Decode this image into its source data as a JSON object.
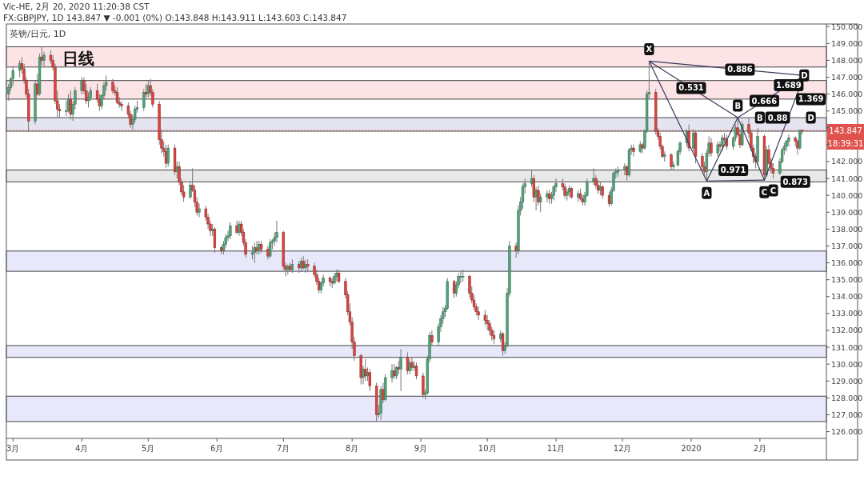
{
  "chart_data": {
    "type": "candlestick",
    "title": "Vic-HE, 2月 20, 2020 11:20:38 CST",
    "subtitle": "FX:GBPJPY, 1D 143.847 ▼ -0.001 (0%) O:143.848 H:143.911 L:143.603 C:143.847",
    "annotations": [
      "英镑/日元, 1D",
      "18:39:31",
      {
        "text": "X",
        "x": "2019-12-13",
        "y": 147.95
      },
      {
        "text": "A",
        "x": "2020-01-08",
        "y": 140.85
      },
      {
        "text": "B",
        "x": "2020-01-22",
        "y": 144.6
      },
      {
        "text": "C",
        "x": "2020-02-03",
        "y": 140.9
      },
      {
        "text": "D",
        "x": "2020-02-21",
        "y": 147.1
      },
      {
        "text": "B",
        "x": "2020-02-01",
        "y": 144.6
      },
      {
        "text": "C",
        "x": "2020-02-07",
        "y": 141.0
      },
      {
        "text": "D",
        "x": "2020-02-24",
        "y": 144.6
      },
      {
        "text": "0.886",
        "x": "2020-01-23",
        "y": 147.45
      },
      {
        "text": "0.531",
        "x": "2020-01-01",
        "y": 146.36
      },
      {
        "text": "1.689",
        "x": "2020-02-14",
        "y": 146.52
      },
      {
        "text": "0.88",
        "x": "2020-02-09",
        "y": 144.6
      },
      {
        "text": "0.666",
        "x": "2020-02-03",
        "y": 145.6
      },
      {
        "text": "1.369",
        "x": "2020-02-24",
        "y": 145.7
      },
      {
        "text": "0.971",
        "x": "2020-01-20",
        "y": 141.5
      },
      {
        "text": "0.873",
        "x": "2020-02-17",
        "y": 140.8
      }
    ],
    "xlim": [
      "2019-02-26",
      "2020-03-02"
    ],
    "xticks": [
      {
        "value": "2019-03-01",
        "label": "3月"
      },
      {
        "value": "2019-04-01",
        "label": "4月"
      },
      {
        "value": "2019-05-01",
        "label": "5月"
      },
      {
        "value": "2019-06-01",
        "label": "6月"
      },
      {
        "value": "2019-07-01",
        "label": "7月"
      },
      {
        "value": "2019-08-01",
        "label": "8月"
      },
      {
        "value": "2019-09-01",
        "label": "9月"
      },
      {
        "value": "2019-10-01",
        "label": "10月"
      },
      {
        "value": "2019-11-01",
        "label": "11月"
      },
      {
        "value": "2019-12-01",
        "label": "12月"
      },
      {
        "value": "2020-01-01",
        "label": "2020"
      },
      {
        "value": "2020-02-01",
        "label": "2月"
      }
    ],
    "ylim": [
      125.6,
      150.15
    ],
    "yticks": [
      {
        "value": 126,
        "label": "126.000"
      },
      {
        "value": 127,
        "label": "127.000"
      },
      {
        "value": 128,
        "label": "128.000"
      },
      {
        "value": 129,
        "label": "129.000"
      },
      {
        "value": 130,
        "label": "130.000"
      },
      {
        "value": 131,
        "label": "131.000"
      },
      {
        "value": 132,
        "label": "132.000"
      },
      {
        "value": 133,
        "label": "133.000"
      },
      {
        "value": 134,
        "label": "134.000"
      },
      {
        "value": 135,
        "label": "135.000"
      },
      {
        "value": 136,
        "label": "136.000"
      },
      {
        "value": 137,
        "label": "137.000"
      },
      {
        "value": 138,
        "label": "138.000"
      },
      {
        "value": 139,
        "label": "139.000"
      },
      {
        "value": 140,
        "label": "140.000"
      },
      {
        "value": 141,
        "label": "141.000"
      },
      {
        "value": 142,
        "label": "142.000"
      },
      {
        "value": 143,
        "label": null
      },
      {
        "value": 144,
        "label": null
      },
      {
        "value": 145,
        "label": "145.000"
      },
      {
        "value": 146,
        "label": "146.000"
      },
      {
        "value": 147,
        "label": "147.000"
      },
      {
        "value": 148,
        "label": "148.000"
      },
      {
        "value": 149,
        "label": "149.000"
      },
      {
        "value": 150,
        "label": "150.000"
      }
    ],
    "bands": [
      {
        "axis": "y",
        "from": 147.6,
        "to": 148.8,
        "label": "日线",
        "color": "#fadadd"
      },
      {
        "axis": "y",
        "from": 145.7,
        "to": 146.8,
        "color": "#fadadd"
      },
      {
        "axis": "y",
        "from": 143.8,
        "to": 144.6,
        "color": "#dcdcec"
      },
      {
        "axis": "y",
        "from": 140.8,
        "to": 141.5,
        "color": "#e0e0e0"
      },
      {
        "axis": "y",
        "from": 135.5,
        "to": 136.7,
        "color": "#e0e0fa"
      },
      {
        "axis": "y",
        "from": 130.4,
        "to": 131.1,
        "color": "#e0e0fa"
      },
      {
        "axis": "y",
        "from": 126.6,
        "to": 128.1,
        "color": "#e0e0fa"
      }
    ],
    "ref_lines": [
      {
        "axis": "y",
        "value": 143.847,
        "label": "143.847",
        "color": "#e0524c",
        "line_style": "dotted"
      }
    ],
    "series": [
      {
        "type": "line",
        "color": "#3a3a5c",
        "x": [
          "2019-12-13",
          "2020-01-08",
          "2020-01-22",
          "2020-02-03",
          "2020-02-21"
        ],
        "values": [
          147.95,
          140.85,
          144.6,
          140.9,
          147.1
        ]
      },
      {
        "type": "line",
        "color": "#3a3a5c",
        "x": [
          "2019-12-13",
          "2020-01-22"
        ],
        "values": [
          147.95,
          144.6
        ]
      },
      {
        "type": "line",
        "color": "#3a3a5c",
        "x": [
          "2020-01-22",
          "2020-02-21"
        ],
        "values": [
          144.6,
          147.1
        ]
      },
      {
        "type": "line",
        "color": "#3a3a5c",
        "x": [
          "2019-12-13",
          "2020-02-21"
        ],
        "values": [
          147.95,
          147.1
        ]
      },
      {
        "type": "line",
        "color": "#3a3a5c",
        "x": [
          "2020-01-08",
          "2020-02-03"
        ],
        "values": [
          140.85,
          140.9
        ]
      }
    ],
    "x": [
      "2019-02-27",
      "2019-02-28",
      "2019-03-01",
      "2019-03-04",
      "2019-03-05",
      "2019-03-06",
      "2019-03-07",
      "2019-03-08",
      "2019-03-11",
      "2019-03-12",
      "2019-03-13",
      "2019-03-14",
      "2019-03-15",
      "2019-03-18",
      "2019-03-19",
      "2019-03-20",
      "2019-03-21",
      "2019-03-22",
      "2019-03-25",
      "2019-03-26",
      "2019-03-27",
      "2019-03-28",
      "2019-03-29",
      "2019-04-01",
      "2019-04-02",
      "2019-04-03",
      "2019-04-04",
      "2019-04-05",
      "2019-04-08",
      "2019-04-09",
      "2019-04-10",
      "2019-04-11",
      "2019-04-12",
      "2019-04-15",
      "2019-04-16",
      "2019-04-17",
      "2019-04-18",
      "2019-04-19",
      "2019-04-22",
      "2019-04-23",
      "2019-04-24",
      "2019-04-25",
      "2019-04-26",
      "2019-04-29",
      "2019-04-30",
      "2019-05-01",
      "2019-05-02",
      "2019-05-03",
      "2019-05-06",
      "2019-05-07",
      "2019-05-08",
      "2019-05-09",
      "2019-05-10",
      "2019-05-13",
      "2019-05-14",
      "2019-05-15",
      "2019-05-16",
      "2019-05-17",
      "2019-05-20",
      "2019-05-21",
      "2019-05-22",
      "2019-05-23",
      "2019-05-24",
      "2019-05-27",
      "2019-05-28",
      "2019-05-29",
      "2019-05-30",
      "2019-05-31",
      "2019-06-03",
      "2019-06-04",
      "2019-06-05",
      "2019-06-06",
      "2019-06-07",
      "2019-06-10",
      "2019-06-11",
      "2019-06-12",
      "2019-06-13",
      "2019-06-14",
      "2019-06-17",
      "2019-06-18",
      "2019-06-19",
      "2019-06-20",
      "2019-06-21",
      "2019-06-24",
      "2019-06-25",
      "2019-06-26",
      "2019-06-27",
      "2019-06-28",
      "2019-07-01",
      "2019-07-02",
      "2019-07-03",
      "2019-07-04",
      "2019-07-05",
      "2019-07-08",
      "2019-07-09",
      "2019-07-10",
      "2019-07-11",
      "2019-07-12",
      "2019-07-15",
      "2019-07-16",
      "2019-07-17",
      "2019-07-18",
      "2019-07-19",
      "2019-07-22",
      "2019-07-23",
      "2019-07-24",
      "2019-07-25",
      "2019-07-26",
      "2019-07-29",
      "2019-07-30",
      "2019-07-31",
      "2019-08-01",
      "2019-08-02",
      "2019-08-05",
      "2019-08-06",
      "2019-08-07",
      "2019-08-08",
      "2019-08-09",
      "2019-08-12",
      "2019-08-13",
      "2019-08-14",
      "2019-08-15",
      "2019-08-16",
      "2019-08-19",
      "2019-08-20",
      "2019-08-21",
      "2019-08-22",
      "2019-08-23",
      "2019-08-26",
      "2019-08-27",
      "2019-08-28",
      "2019-08-29",
      "2019-08-30",
      "2019-09-02",
      "2019-09-03",
      "2019-09-04",
      "2019-09-05",
      "2019-09-06",
      "2019-09-09",
      "2019-09-10",
      "2019-09-11",
      "2019-09-12",
      "2019-09-13",
      "2019-09-16",
      "2019-09-17",
      "2019-09-18",
      "2019-09-19",
      "2019-09-20",
      "2019-09-23",
      "2019-09-24",
      "2019-09-25",
      "2019-09-26",
      "2019-09-27",
      "2019-09-30",
      "2019-10-01",
      "2019-10-02",
      "2019-10-03",
      "2019-10-04",
      "2019-10-07",
      "2019-10-08",
      "2019-10-09",
      "2019-10-10",
      "2019-10-11",
      "2019-10-14",
      "2019-10-15",
      "2019-10-16",
      "2019-10-17",
      "2019-10-18",
      "2019-10-21",
      "2019-10-22",
      "2019-10-23",
      "2019-10-24",
      "2019-10-25",
      "2019-10-28",
      "2019-10-29",
      "2019-10-30",
      "2019-10-31",
      "2019-11-01",
      "2019-11-04",
      "2019-11-05",
      "2019-11-06",
      "2019-11-07",
      "2019-11-08",
      "2019-11-11",
      "2019-11-12",
      "2019-11-13",
      "2019-11-14",
      "2019-11-15",
      "2019-11-18",
      "2019-11-19",
      "2019-11-20",
      "2019-11-21",
      "2019-11-22",
      "2019-11-25",
      "2019-11-26",
      "2019-11-27",
      "2019-11-28",
      "2019-11-29",
      "2019-12-02",
      "2019-12-03",
      "2019-12-04",
      "2019-12-05",
      "2019-12-06",
      "2019-12-09",
      "2019-12-10",
      "2019-12-11",
      "2019-12-12",
      "2019-12-13",
      "2019-12-16",
      "2019-12-17",
      "2019-12-18",
      "2019-12-19",
      "2019-12-20",
      "2019-12-23",
      "2019-12-24",
      "2019-12-26",
      "2019-12-27",
      "2019-12-30",
      "2019-12-31",
      "2020-01-02",
      "2020-01-03",
      "2020-01-06",
      "2020-01-07",
      "2020-01-08",
      "2020-01-09",
      "2020-01-10",
      "2020-01-13",
      "2020-01-14",
      "2020-01-15",
      "2020-01-16",
      "2020-01-17",
      "2020-01-20",
      "2020-01-21",
      "2020-01-22",
      "2020-01-23",
      "2020-01-24",
      "2020-01-27",
      "2020-01-28",
      "2020-01-29",
      "2020-01-30",
      "2020-01-31",
      "2020-02-03",
      "2020-02-04",
      "2020-02-05",
      "2020-02-06",
      "2020-02-07",
      "2020-02-10",
      "2020-02-11",
      "2020-02-12",
      "2020-02-13",
      "2020-02-14",
      "2020-02-17",
      "2020-02-18",
      "2020-02-19",
      "2020-02-20"
    ],
    "ohlc": [
      [
        146.0,
        146.6,
        145.6,
        146.4
      ],
      [
        146.4,
        147.0,
        146.2,
        146.9
      ],
      [
        146.9,
        147.6,
        146.5,
        147.4
      ],
      [
        147.4,
        148.0,
        147.0,
        147.8
      ],
      [
        147.8,
        148.2,
        147.2,
        147.5
      ],
      [
        147.5,
        147.8,
        146.6,
        146.8
      ],
      [
        146.8,
        147.0,
        145.8,
        146.0
      ],
      [
        146.0,
        146.3,
        143.8,
        144.4
      ],
      [
        144.4,
        146.8,
        144.2,
        146.6
      ],
      [
        146.6,
        147.2,
        145.9,
        146.0
      ],
      [
        146.0,
        148.4,
        145.9,
        148.2
      ],
      [
        148.2,
        148.8,
        147.7,
        148.0
      ],
      [
        148.0,
        148.5,
        147.6,
        148.3
      ],
      [
        148.3,
        148.6,
        147.8,
        148.0
      ],
      [
        148.0,
        148.3,
        147.4,
        147.6
      ],
      [
        147.6,
        147.8,
        145.4,
        145.6
      ],
      [
        145.6,
        146.2,
        144.6,
        145.1
      ],
      [
        145.1,
        145.4,
        144.6,
        145.0
      ],
      [
        145.0,
        145.6,
        144.7,
        145.0
      ],
      [
        145.0,
        146.0,
        144.9,
        145.7
      ],
      [
        145.7,
        146.2,
        144.5,
        144.8
      ],
      [
        144.8,
        145.6,
        144.4,
        145.4
      ],
      [
        145.4,
        146.4,
        145.1,
        146.2
      ],
      [
        146.2,
        147.0,
        146.0,
        146.8
      ],
      [
        146.8,
        147.0,
        146.0,
        146.2
      ],
      [
        146.2,
        146.6,
        145.4,
        145.6
      ],
      [
        145.6,
        146.1,
        145.2,
        145.8
      ],
      [
        145.8,
        146.4,
        145.6,
        146.2
      ],
      [
        146.2,
        146.6,
        145.5,
        145.7
      ],
      [
        145.7,
        146.0,
        145.0,
        145.3
      ],
      [
        145.3,
        146.0,
        145.1,
        145.9
      ],
      [
        145.9,
        146.7,
        145.7,
        146.5
      ],
      [
        146.5,
        147.1,
        146.2,
        146.7
      ],
      [
        146.7,
        146.9,
        146.0,
        146.2
      ],
      [
        146.2,
        146.5,
        145.9,
        146.1
      ],
      [
        146.1,
        146.4,
        145.4,
        145.5
      ],
      [
        145.5,
        145.8,
        145.2,
        145.4
      ],
      [
        145.4,
        145.6,
        145.0,
        145.3
      ],
      [
        145.3,
        145.5,
        144.6,
        144.8
      ],
      [
        144.8,
        145.0,
        144.0,
        144.2
      ],
      [
        144.2,
        144.8,
        143.9,
        144.5
      ],
      [
        144.5,
        145.3,
        144.3,
        145.1
      ],
      [
        145.1,
        145.6,
        144.9,
        145.2
      ],
      [
        145.2,
        146.3,
        145.0,
        146.1
      ],
      [
        146.1,
        146.6,
        145.8,
        146.0
      ],
      [
        146.0,
        146.8,
        145.8,
        146.5
      ],
      [
        146.5,
        146.9,
        145.9,
        146.1
      ],
      [
        146.1,
        146.3,
        145.2,
        145.4
      ],
      [
        145.4,
        145.6,
        143.0,
        143.3
      ],
      [
        143.3,
        143.9,
        142.5,
        142.8
      ],
      [
        142.8,
        143.2,
        142.3,
        142.6
      ],
      [
        142.6,
        143.0,
        141.6,
        141.9
      ],
      [
        141.9,
        143.0,
        141.7,
        142.8
      ],
      [
        142.8,
        143.0,
        141.2,
        141.4
      ],
      [
        141.4,
        142.0,
        141.0,
        141.7
      ],
      [
        141.7,
        142.0,
        140.6,
        140.8
      ],
      [
        140.8,
        141.0,
        140.0,
        140.2
      ],
      [
        140.2,
        140.6,
        139.6,
        139.9
      ],
      [
        139.9,
        140.8,
        139.8,
        140.6
      ],
      [
        140.6,
        141.6,
        140.2,
        140.3
      ],
      [
        140.3,
        140.6,
        139.3,
        139.6
      ],
      [
        139.6,
        139.9,
        138.8,
        139.0
      ],
      [
        139.0,
        139.5,
        138.7,
        139.2
      ],
      [
        139.2,
        139.4,
        138.5,
        138.7
      ],
      [
        138.7,
        138.9,
        138.0,
        138.3
      ],
      [
        138.3,
        138.5,
        137.6,
        137.9
      ],
      [
        137.9,
        138.3,
        137.6,
        138.0
      ],
      [
        138.0,
        138.1,
        136.6,
        136.9
      ],
      [
        136.9,
        137.0,
        136.5,
        136.7
      ],
      [
        136.7,
        137.3,
        136.5,
        137.1
      ],
      [
        137.1,
        137.7,
        136.9,
        137.5
      ],
      [
        137.5,
        137.9,
        137.3,
        137.6
      ],
      [
        137.6,
        138.4,
        137.4,
        138.2
      ],
      [
        138.2,
        138.5,
        137.7,
        137.8
      ],
      [
        137.8,
        138.5,
        137.6,
        138.3
      ],
      [
        138.3,
        138.5,
        137.6,
        137.8
      ],
      [
        137.8,
        138.0,
        137.0,
        137.2
      ],
      [
        137.2,
        137.4,
        136.3,
        136.5
      ],
      [
        136.5,
        137.0,
        136.2,
        136.6
      ],
      [
        136.6,
        137.2,
        136.0,
        136.9
      ],
      [
        136.9,
        137.3,
        136.5,
        136.7
      ],
      [
        136.7,
        137.3,
        136.5,
        137.1
      ],
      [
        137.1,
        137.3,
        136.6,
        136.8
      ],
      [
        136.8,
        137.0,
        136.2,
        136.4
      ],
      [
        136.4,
        137.4,
        136.3,
        137.2
      ],
      [
        137.2,
        137.4,
        136.8,
        137.3
      ],
      [
        137.3,
        137.8,
        137.0,
        137.5
      ],
      [
        137.5,
        138.5,
        137.2,
        137.8
      ],
      [
        137.8,
        137.9,
        135.6,
        135.8
      ],
      [
        135.8,
        136.0,
        135.2,
        135.6
      ],
      [
        135.6,
        135.9,
        135.3,
        135.8
      ],
      [
        135.8,
        136.0,
        135.5,
        135.6
      ],
      [
        135.6,
        136.2,
        135.4,
        135.9
      ],
      [
        135.9,
        136.1,
        135.4,
        135.7
      ],
      [
        135.7,
        136.3,
        135.5,
        136.1
      ],
      [
        136.1,
        136.4,
        135.6,
        135.7
      ],
      [
        135.7,
        136.2,
        135.4,
        135.9
      ],
      [
        135.9,
        136.2,
        135.5,
        135.8
      ],
      [
        135.8,
        136.0,
        135.1,
        135.3
      ],
      [
        135.3,
        135.6,
        134.7,
        134.9
      ],
      [
        134.9,
        135.1,
        134.2,
        134.4
      ],
      [
        134.4,
        134.9,
        134.2,
        134.8
      ],
      [
        134.8,
        135.3,
        134.6,
        135.1
      ],
      [
        135.1,
        135.2,
        134.6,
        134.9
      ],
      [
        134.9,
        135.1,
        134.5,
        134.8
      ],
      [
        134.8,
        135.4,
        134.7,
        135.2
      ],
      [
        135.2,
        135.6,
        134.9,
        135.4
      ],
      [
        135.4,
        135.6,
        134.8,
        134.9
      ],
      [
        134.9,
        135.1,
        133.9,
        134.1
      ],
      [
        134.1,
        134.3,
        132.9,
        133.1
      ],
      [
        133.1,
        133.6,
        132.3,
        132.5
      ],
      [
        132.5,
        132.8,
        130.9,
        131.3
      ],
      [
        131.3,
        131.6,
        130.2,
        130.5
      ],
      [
        130.5,
        130.6,
        128.8,
        129.2
      ],
      [
        129.2,
        129.9,
        128.8,
        129.7
      ],
      [
        129.7,
        130.3,
        129.0,
        129.3
      ],
      [
        129.3,
        129.8,
        129.0,
        129.5
      ],
      [
        129.5,
        129.7,
        128.4,
        128.7
      ],
      [
        128.7,
        128.9,
        126.6,
        127.0
      ],
      [
        127.0,
        127.6,
        126.8,
        127.1
      ],
      [
        127.1,
        128.7,
        126.7,
        128.5
      ],
      [
        128.5,
        128.9,
        127.7,
        127.9
      ],
      [
        127.9,
        129.4,
        127.8,
        129.2
      ],
      [
        129.2,
        130.0,
        128.9,
        129.6
      ],
      [
        129.6,
        130.0,
        129.1,
        129.3
      ],
      [
        129.3,
        129.9,
        129.1,
        129.8
      ],
      [
        129.8,
        130.2,
        129.4,
        129.7
      ],
      [
        129.7,
        130.9,
        128.4,
        130.4
      ],
      [
        130.4,
        130.7,
        129.4,
        129.6
      ],
      [
        129.6,
        130.3,
        129.4,
        130.1
      ],
      [
        130.1,
        130.4,
        129.6,
        129.8
      ],
      [
        129.8,
        130.2,
        129.6,
        129.9
      ],
      [
        129.9,
        130.1,
        129.1,
        129.3
      ],
      [
        129.3,
        129.5,
        128.0,
        128.2
      ],
      [
        128.2,
        128.5,
        127.9,
        128.3
      ],
      [
        128.3,
        130.5,
        128.2,
        130.3
      ],
      [
        130.3,
        131.9,
        130.1,
        131.7
      ],
      [
        131.7,
        132.0,
        131.1,
        131.3
      ],
      [
        131.3,
        132.4,
        131.1,
        132.2
      ],
      [
        132.2,
        132.9,
        131.9,
        132.7
      ],
      [
        132.7,
        133.4,
        132.4,
        133.1
      ],
      [
        133.1,
        133.5,
        132.8,
        133.3
      ],
      [
        133.3,
        135.1,
        133.2,
        134.9
      ],
      [
        134.9,
        135.0,
        133.9,
        134.2
      ],
      [
        134.2,
        134.9,
        134.0,
        134.7
      ],
      [
        134.7,
        135.4,
        134.5,
        135.2
      ],
      [
        135.2,
        135.5,
        134.8,
        135.2
      ],
      [
        135.2,
        135.6,
        134.9,
        135.2
      ],
      [
        135.2,
        135.3,
        133.9,
        134.2
      ],
      [
        134.2,
        134.6,
        133.6,
        133.8
      ],
      [
        133.8,
        134.1,
        133.2,
        133.4
      ],
      [
        133.4,
        133.6,
        132.9,
        133.1
      ],
      [
        133.1,
        133.4,
        132.6,
        132.9
      ],
      [
        132.9,
        133.2,
        132.3,
        132.6
      ],
      [
        132.6,
        132.9,
        132.0,
        132.4
      ],
      [
        132.4,
        132.6,
        131.7,
        132.0
      ],
      [
        132.0,
        132.2,
        131.4,
        131.7
      ],
      [
        131.7,
        132.0,
        131.2,
        131.5
      ],
      [
        131.5,
        132.0,
        131.3,
        131.8
      ],
      [
        131.8,
        131.9,
        130.5,
        130.8
      ],
      [
        130.8,
        131.3,
        130.6,
        131.1
      ],
      [
        131.1,
        134.5,
        131.0,
        134.2
      ],
      [
        134.2,
        137.3,
        134.0,
        137.0
      ],
      [
        137.0,
        137.2,
        136.3,
        136.7
      ],
      [
        136.7,
        139.4,
        136.5,
        139.1
      ],
      [
        139.1,
        139.9,
        138.8,
        139.6
      ],
      [
        139.6,
        140.7,
        139.2,
        140.5
      ],
      [
        140.5,
        141.0,
        140.1,
        140.7
      ],
      [
        140.7,
        141.5,
        140.5,
        141.0
      ],
      [
        141.0,
        141.2,
        139.6,
        139.9
      ],
      [
        139.9,
        140.5,
        139.1,
        140.3
      ],
      [
        140.3,
        140.6,
        139.4,
        139.6
      ],
      [
        139.6,
        140.1,
        139.0,
        139.9
      ],
      [
        139.9,
        140.3,
        139.6,
        140.1
      ],
      [
        140.1,
        140.3,
        139.5,
        139.8
      ],
      [
        139.8,
        140.2,
        139.5,
        140.0
      ],
      [
        140.0,
        140.6,
        139.7,
        140.5
      ],
      [
        140.5,
        141.0,
        140.2,
        140.7
      ],
      [
        140.7,
        141.0,
        140.3,
        140.5
      ],
      [
        140.5,
        140.7,
        139.8,
        140.0
      ],
      [
        140.0,
        140.4,
        139.7,
        140.2
      ],
      [
        140.2,
        140.6,
        139.9,
        140.4
      ],
      [
        140.4,
        140.5,
        139.8,
        139.9
      ],
      [
        139.9,
        140.3,
        139.6,
        140.1
      ],
      [
        140.1,
        140.4,
        139.7,
        139.8
      ],
      [
        139.8,
        140.0,
        139.4,
        139.6
      ],
      [
        139.6,
        140.2,
        139.4,
        140.0
      ],
      [
        140.0,
        141.0,
        139.9,
        140.8
      ],
      [
        140.8,
        141.6,
        140.6,
        141.0
      ],
      [
        141.0,
        141.2,
        140.4,
        140.6
      ],
      [
        140.6,
        140.9,
        140.1,
        140.3
      ],
      [
        140.3,
        140.8,
        140.0,
        140.5
      ],
      [
        140.5,
        140.6,
        139.8,
        140.0
      ],
      [
        140.0,
        140.2,
        139.3,
        139.5
      ],
      [
        139.5,
        140.5,
        139.4,
        140.3
      ],
      [
        140.3,
        141.4,
        140.2,
        141.3
      ],
      [
        141.3,
        141.6,
        141.0,
        141.4
      ],
      [
        141.4,
        141.7,
        141.1,
        141.5
      ],
      [
        141.5,
        141.9,
        141.2,
        141.7
      ],
      [
        141.7,
        141.8,
        140.9,
        141.2
      ],
      [
        141.2,
        142.8,
        141.1,
        142.7
      ],
      [
        142.7,
        143.0,
        142.4,
        142.8
      ],
      [
        142.8,
        143.0,
        142.3,
        142.6
      ],
      [
        142.6,
        143.2,
        142.5,
        143.0
      ],
      [
        143.0,
        143.1,
        142.5,
        142.8
      ],
      [
        142.8,
        143.9,
        142.7,
        143.8
      ],
      [
        143.8,
        146.2,
        143.7,
        146.0
      ],
      [
        146.0,
        147.95,
        145.7,
        146.1
      ],
      [
        146.1,
        146.3,
        143.6,
        143.8
      ],
      [
        143.8,
        144.0,
        143.3,
        143.5
      ],
      [
        143.5,
        143.7,
        142.7,
        142.9
      ],
      [
        142.9,
        143.0,
        142.2,
        142.3
      ],
      [
        142.3,
        142.6,
        142.0,
        142.4
      ],
      [
        142.4,
        142.5,
        141.5,
        141.7
      ],
      [
        141.7,
        142.0,
        141.5,
        141.8
      ],
      [
        141.8,
        142.7,
        141.7,
        142.6
      ],
      [
        142.6,
        143.2,
        142.4,
        143.1
      ],
      [
        143.1,
        143.9,
        142.9,
        143.8
      ],
      [
        143.8,
        144.2,
        142.6,
        142.8
      ],
      [
        142.8,
        143.9,
        142.6,
        143.7
      ],
      [
        143.7,
        143.8,
        141.9,
        142.3
      ],
      [
        142.3,
        142.5,
        141.5,
        141.7
      ],
      [
        141.7,
        142.0,
        141.2,
        141.4
      ],
      [
        141.4,
        142.7,
        140.85,
        142.5
      ],
      [
        142.5,
        143.5,
        142.3,
        143.1
      ],
      [
        143.1,
        143.4,
        142.3,
        142.5
      ],
      [
        142.5,
        143.2,
        142.3,
        143.0
      ],
      [
        143.0,
        143.2,
        142.6,
        142.9
      ],
      [
        142.9,
        143.6,
        142.6,
        143.4
      ],
      [
        143.4,
        143.7,
        143.1,
        143.3
      ],
      [
        143.3,
        143.6,
        142.7,
        142.9
      ],
      [
        142.9,
        143.5,
        142.7,
        143.4
      ],
      [
        143.4,
        144.2,
        143.2,
        144.0
      ],
      [
        144.0,
        144.6,
        143.5,
        143.6
      ],
      [
        143.6,
        143.9,
        142.8,
        143.0
      ],
      [
        143.0,
        144.4,
        142.9,
        144.2
      ],
      [
        144.2,
        144.6,
        143.4,
        143.7
      ],
      [
        143.7,
        143.9,
        142.6,
        142.8
      ],
      [
        142.8,
        143.0,
        141.9,
        142.3
      ],
      [
        142.3,
        142.5,
        141.6,
        142.0
      ],
      [
        142.0,
        144.0,
        141.8,
        143.5
      ],
      [
        143.5,
        143.6,
        140.9,
        141.2
      ],
      [
        141.2,
        142.9,
        141.1,
        142.7
      ],
      [
        142.7,
        143.0,
        141.8,
        141.9
      ],
      [
        141.9,
        142.2,
        141.3,
        141.6
      ],
      [
        141.6,
        141.9,
        141.0,
        141.3
      ],
      [
        141.3,
        142.2,
        141.2,
        142.0
      ],
      [
        142.0,
        142.8,
        141.9,
        142.7
      ],
      [
        142.7,
        143.1,
        142.4,
        142.9
      ],
      [
        142.9,
        143.3,
        142.6,
        143.2
      ],
      [
        143.2,
        143.6,
        142.9,
        143.4
      ],
      [
        143.4,
        143.5,
        142.9,
        143.2
      ],
      [
        143.2,
        143.3,
        142.4,
        142.8
      ],
      [
        142.8,
        143.9,
        142.7,
        143.848
      ],
      [
        143.848,
        143.911,
        143.603,
        143.847
      ]
    ]
  }
}
